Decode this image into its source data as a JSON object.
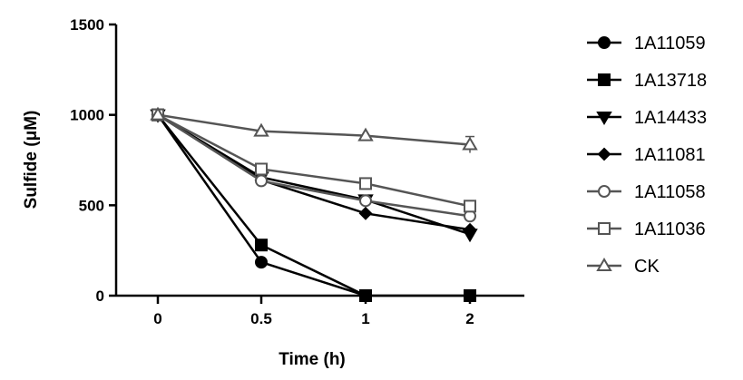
{
  "chart_data": {
    "type": "line",
    "xlabel": "Time  (h)",
    "ylabel": "Sulfide (μM)",
    "categories": [
      "0",
      "0.5",
      "1",
      "2"
    ],
    "ylim": [
      0,
      1500
    ],
    "yticks": [
      0,
      500,
      1000,
      1500
    ],
    "grid": false,
    "legend_position": "right",
    "series": [
      {
        "name": "1A11059",
        "marker": "circle-filled",
        "color": "#000000",
        "values": [
          1000,
          185,
          0,
          null
        ]
      },
      {
        "name": "1A13718",
        "marker": "square-filled",
        "color": "#000000",
        "values": [
          1000,
          280,
          0,
          0
        ]
      },
      {
        "name": "1A14433",
        "marker": "triangle-down-filled",
        "color": "#000000",
        "values": [
          1000,
          655,
          530,
          340
        ]
      },
      {
        "name": "1A11081",
        "marker": "diamond-filled",
        "color": "#000000",
        "values": [
          1000,
          640,
          455,
          365
        ]
      },
      {
        "name": "1A11058",
        "marker": "circle-open",
        "color": "#555555",
        "values": [
          1000,
          635,
          525,
          440
        ]
      },
      {
        "name": "1A11036",
        "marker": "square-open",
        "color": "#555555",
        "values": [
          1000,
          700,
          620,
          495
        ]
      },
      {
        "name": "CK",
        "marker": "triangle-up-open",
        "color": "#555555",
        "values": [
          1000,
          910,
          885,
          835
        ]
      }
    ]
  }
}
